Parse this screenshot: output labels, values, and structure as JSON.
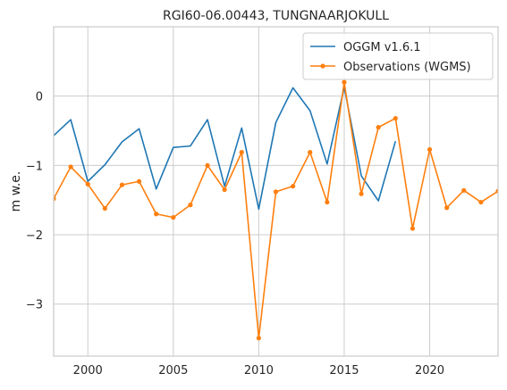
{
  "chart_data": {
    "type": "line",
    "title": "RGI60-06.00443, TUNGNAARJOKULL",
    "xlabel": "",
    "ylabel": "m w.e.",
    "xlim": [
      1998,
      2024
    ],
    "ylim": [
      -3.75,
      1.0
    ],
    "x_ticks": [
      2000,
      2005,
      2010,
      2015,
      2020
    ],
    "y_ticks": [
      0,
      -1,
      -2,
      -3
    ],
    "y_tick_labels": [
      "0",
      "−1",
      "−2",
      "−3"
    ],
    "grid": true,
    "legend_position": "top-right",
    "series": [
      {
        "name": "OGGM v1.6.1",
        "color": "#1f77b4",
        "marker": false,
        "x": [
          1998,
          1999,
          2000,
          2001,
          2002,
          2003,
          2004,
          2005,
          2006,
          2007,
          2008,
          2009,
          2010,
          2011,
          2012,
          2013,
          2014,
          2015,
          2016,
          2017,
          2018
        ],
        "y": [
          -0.57,
          -0.34,
          -1.23,
          -0.99,
          -0.66,
          -0.47,
          -1.34,
          -0.74,
          -0.72,
          -0.34,
          -1.3,
          -0.46,
          -1.63,
          -0.38,
          0.12,
          -0.21,
          -0.98,
          0.13,
          -1.15,
          -1.51,
          -0.65
        ]
      },
      {
        "name": "Observations (WGMS)",
        "color": "#ff7f0e",
        "marker": true,
        "x": [
          1998,
          1999,
          2000,
          2001,
          2002,
          2003,
          2004,
          2005,
          2006,
          2007,
          2008,
          2009,
          2010,
          2011,
          2012,
          2013,
          2014,
          2015,
          2016,
          2017,
          2018,
          2019,
          2020,
          2021,
          2022,
          2023,
          2024
        ],
        "y": [
          -1.48,
          -1.02,
          -1.27,
          -1.62,
          -1.28,
          -1.23,
          -1.7,
          -1.75,
          -1.57,
          -1.0,
          -1.35,
          -0.81,
          -3.49,
          -1.38,
          -1.3,
          -0.81,
          -1.53,
          0.2,
          -1.41,
          -0.45,
          -0.32,
          -1.91,
          -0.77,
          -1.61,
          -1.36,
          -1.53,
          -1.37
        ]
      }
    ]
  }
}
